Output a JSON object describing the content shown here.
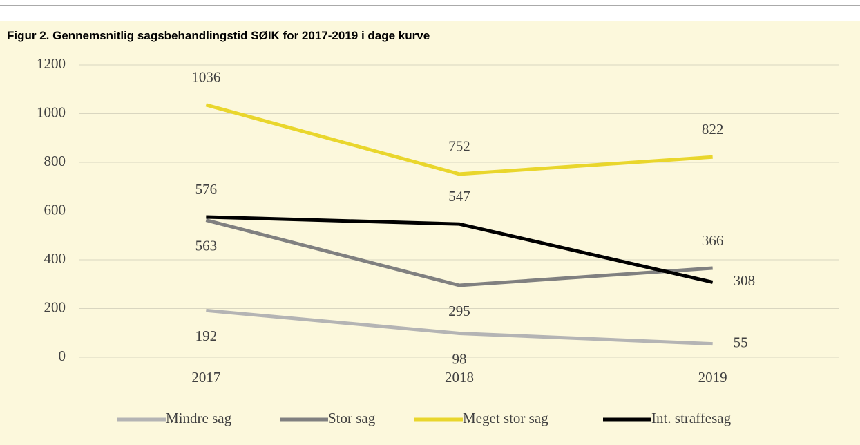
{
  "chart_data": {
    "type": "line",
    "title": "Figur 2. Gennemsnitlig sagsbehandlingstid SØIK for 2017-2019 i dage kurve",
    "categories": [
      "2017",
      "2018",
      "2019"
    ],
    "series": [
      {
        "name": "Mindre sag",
        "color": "#b4b4b4",
        "values": [
          192,
          98,
          55
        ]
      },
      {
        "name": "Stor sag",
        "color": "#808080",
        "values": [
          563,
          295,
          366
        ]
      },
      {
        "name": "Meget stor sag",
        "color": "#e9d62c",
        "values": [
          1036,
          752,
          822
        ]
      },
      {
        "name": "Int. straffesag",
        "color": "#000000",
        "values": [
          576,
          547,
          308
        ]
      }
    ],
    "ylim": [
      0,
      1200
    ],
    "yticks": [
      0,
      200,
      400,
      600,
      800,
      1000,
      1200
    ],
    "grid": true,
    "legend": "bottom"
  }
}
